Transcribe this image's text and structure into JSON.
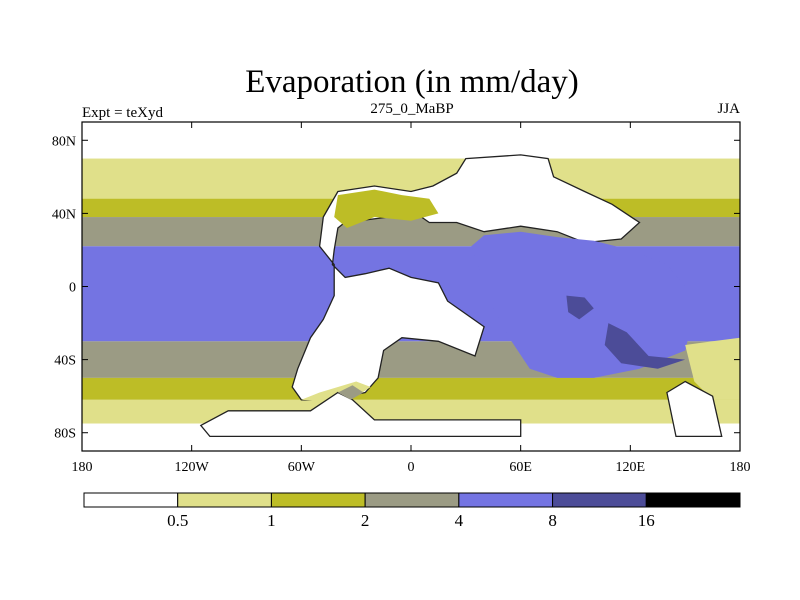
{
  "chart_data": {
    "type": "heatmap",
    "title": "Evaporation (in mm/day)",
    "left_label": "Expt = teXyd",
    "center_label": "275_0_MaBP",
    "right_label": "JJA",
    "projection": "cylindrical-equidistant",
    "xlim": [
      -180,
      180
    ],
    "ylim": [
      -90,
      90
    ],
    "x_ticks": [
      {
        "value": -180,
        "label": "180"
      },
      {
        "value": -120,
        "label": "120W"
      },
      {
        "value": -60,
        "label": "60W"
      },
      {
        "value": 0,
        "label": "0"
      },
      {
        "value": 60,
        "label": "60E"
      },
      {
        "value": 120,
        "label": "120E"
      },
      {
        "value": 180,
        "label": "180"
      }
    ],
    "y_ticks": [
      {
        "value": 80,
        "label": "80N"
      },
      {
        "value": 40,
        "label": "40N"
      },
      {
        "value": 0,
        "label": "0"
      },
      {
        "value": -40,
        "label": "40S"
      },
      {
        "value": -80,
        "label": "80S"
      }
    ],
    "colorbar": {
      "orientation": "horizontal",
      "levels": [
        "0.5",
        "1",
        "2",
        "4",
        "8",
        "16"
      ],
      "colors": [
        "#ffffff",
        "#e0e08a",
        "#bdbd26",
        "#9b9b84",
        "#7474e2",
        "#4c4c98",
        "#000000"
      ]
    },
    "field_bands": [
      {
        "lat_range": [
          70,
          90
        ],
        "class": 0
      },
      {
        "lat_range": [
          45,
          70
        ],
        "class": 1
      },
      {
        "lat_range": [
          38,
          48
        ],
        "class": 2
      },
      {
        "lat_range": [
          22,
          38
        ],
        "class": 3
      },
      {
        "lat_range": [
          -30,
          22
        ],
        "class": 4
      },
      {
        "lat_range": [
          -50,
          -30
        ],
        "class": 3
      },
      {
        "lat_range": [
          -62,
          -50
        ],
        "class": 2
      },
      {
        "lat_range": [
          -75,
          -62
        ],
        "class": 1
      },
      {
        "lat_range": [
          -90,
          -75
        ],
        "class": 0
      }
    ],
    "land_regions": [
      {
        "class": 0,
        "coast": true,
        "polygon": [
          [
            -40,
            52
          ],
          [
            -20,
            55
          ],
          [
            0,
            52
          ],
          [
            12,
            55
          ],
          [
            25,
            62
          ],
          [
            30,
            70
          ],
          [
            60,
            72
          ],
          [
            75,
            70
          ],
          [
            78,
            60
          ],
          [
            95,
            52
          ],
          [
            110,
            45
          ],
          [
            125,
            35
          ],
          [
            115,
            26
          ],
          [
            95,
            24
          ],
          [
            80,
            30
          ],
          [
            60,
            33
          ],
          [
            40,
            30
          ],
          [
            25,
            35
          ],
          [
            10,
            35
          ],
          [
            0,
            42
          ],
          [
            -20,
            45
          ],
          [
            -30,
            40
          ],
          [
            -40,
            32
          ],
          [
            -42,
            20
          ],
          [
            -43,
            12
          ],
          [
            -36,
            5
          ],
          [
            -25,
            7
          ],
          [
            -12,
            10
          ],
          [
            0,
            5
          ],
          [
            15,
            2
          ],
          [
            20,
            -8
          ],
          [
            30,
            -15
          ],
          [
            40,
            -22
          ],
          [
            35,
            -38
          ],
          [
            15,
            -30
          ],
          [
            -5,
            -28
          ],
          [
            -15,
            -35
          ],
          [
            -18,
            -50
          ],
          [
            -25,
            -58
          ],
          [
            -45,
            -62
          ],
          [
            -60,
            -62
          ],
          [
            -65,
            -55
          ],
          [
            -62,
            -45
          ],
          [
            -55,
            -28
          ],
          [
            -48,
            -18
          ],
          [
            -42,
            -5
          ],
          [
            -42,
            12
          ],
          [
            -50,
            22
          ],
          [
            -48,
            38
          ]
        ]
      },
      {
        "class": 0,
        "coast": true,
        "polygon": [
          [
            -35,
            45
          ],
          [
            -15,
            48
          ],
          [
            -5,
            44
          ],
          [
            -12,
            38
          ],
          [
            -28,
            36
          ]
        ]
      },
      {
        "class": 4,
        "coast": false,
        "polygon": [
          [
            40,
            28
          ],
          [
            60,
            30
          ],
          [
            80,
            27
          ],
          [
            100,
            25
          ],
          [
            120,
            20
          ],
          [
            140,
            12
          ],
          [
            150,
            0
          ],
          [
            155,
            -15
          ],
          [
            150,
            -35
          ],
          [
            125,
            -45
          ],
          [
            100,
            -50
          ],
          [
            80,
            -50
          ],
          [
            65,
            -45
          ],
          [
            55,
            -30
          ],
          [
            45,
            -12
          ],
          [
            38,
            8
          ],
          [
            33,
            22
          ]
        ]
      },
      {
        "class": 5,
        "coast": false,
        "polygon": [
          [
            85,
            -5
          ],
          [
            95,
            -6
          ],
          [
            100,
            -12
          ],
          [
            92,
            -18
          ],
          [
            86,
            -14
          ]
        ]
      },
      {
        "class": 5,
        "coast": false,
        "polygon": [
          [
            108,
            -20
          ],
          [
            118,
            -25
          ],
          [
            130,
            -38
          ],
          [
            150,
            -40
          ],
          [
            135,
            -45
          ],
          [
            115,
            -42
          ],
          [
            106,
            -32
          ]
        ]
      },
      {
        "class": 2,
        "coast": false,
        "polygon": [
          [
            -40,
            50
          ],
          [
            -20,
            53
          ],
          [
            -5,
            50
          ],
          [
            10,
            48
          ],
          [
            15,
            40
          ],
          [
            0,
            36
          ],
          [
            -20,
            38
          ],
          [
            -35,
            32
          ],
          [
            -42,
            38
          ]
        ]
      },
      {
        "class": 1,
        "coast": false,
        "polygon": [
          [
            -60,
            -62
          ],
          [
            -45,
            -63
          ],
          [
            -30,
            -60
          ],
          [
            -22,
            -55
          ],
          [
            -30,
            -52
          ],
          [
            -50,
            -58
          ]
        ]
      },
      {
        "class": 0,
        "coast": true,
        "polygon": [
          [
            -100,
            -68
          ],
          [
            -55,
            -68
          ],
          [
            -40,
            -58
          ],
          [
            -32,
            -62
          ],
          [
            -20,
            -73
          ],
          [
            60,
            -73
          ],
          [
            60,
            -82
          ],
          [
            -110,
            -82
          ],
          [
            -115,
            -76
          ]
        ]
      },
      {
        "class": 3,
        "coast": false,
        "polygon": [
          [
            -40,
            -58
          ],
          [
            -32,
            -54
          ],
          [
            -26,
            -58
          ],
          [
            -33,
            -62
          ]
        ]
      },
      {
        "class": 1,
        "coast": false,
        "polygon": [
          [
            150,
            -32
          ],
          [
            165,
            -30
          ],
          [
            180,
            -28
          ],
          [
            180,
            -62
          ],
          [
            165,
            -62
          ],
          [
            155,
            -52
          ]
        ]
      },
      {
        "class": 0,
        "coast": true,
        "polygon": [
          [
            140,
            -58
          ],
          [
            150,
            -52
          ],
          [
            165,
            -60
          ],
          [
            170,
            -82
          ],
          [
            145,
            -82
          ]
        ]
      }
    ]
  }
}
